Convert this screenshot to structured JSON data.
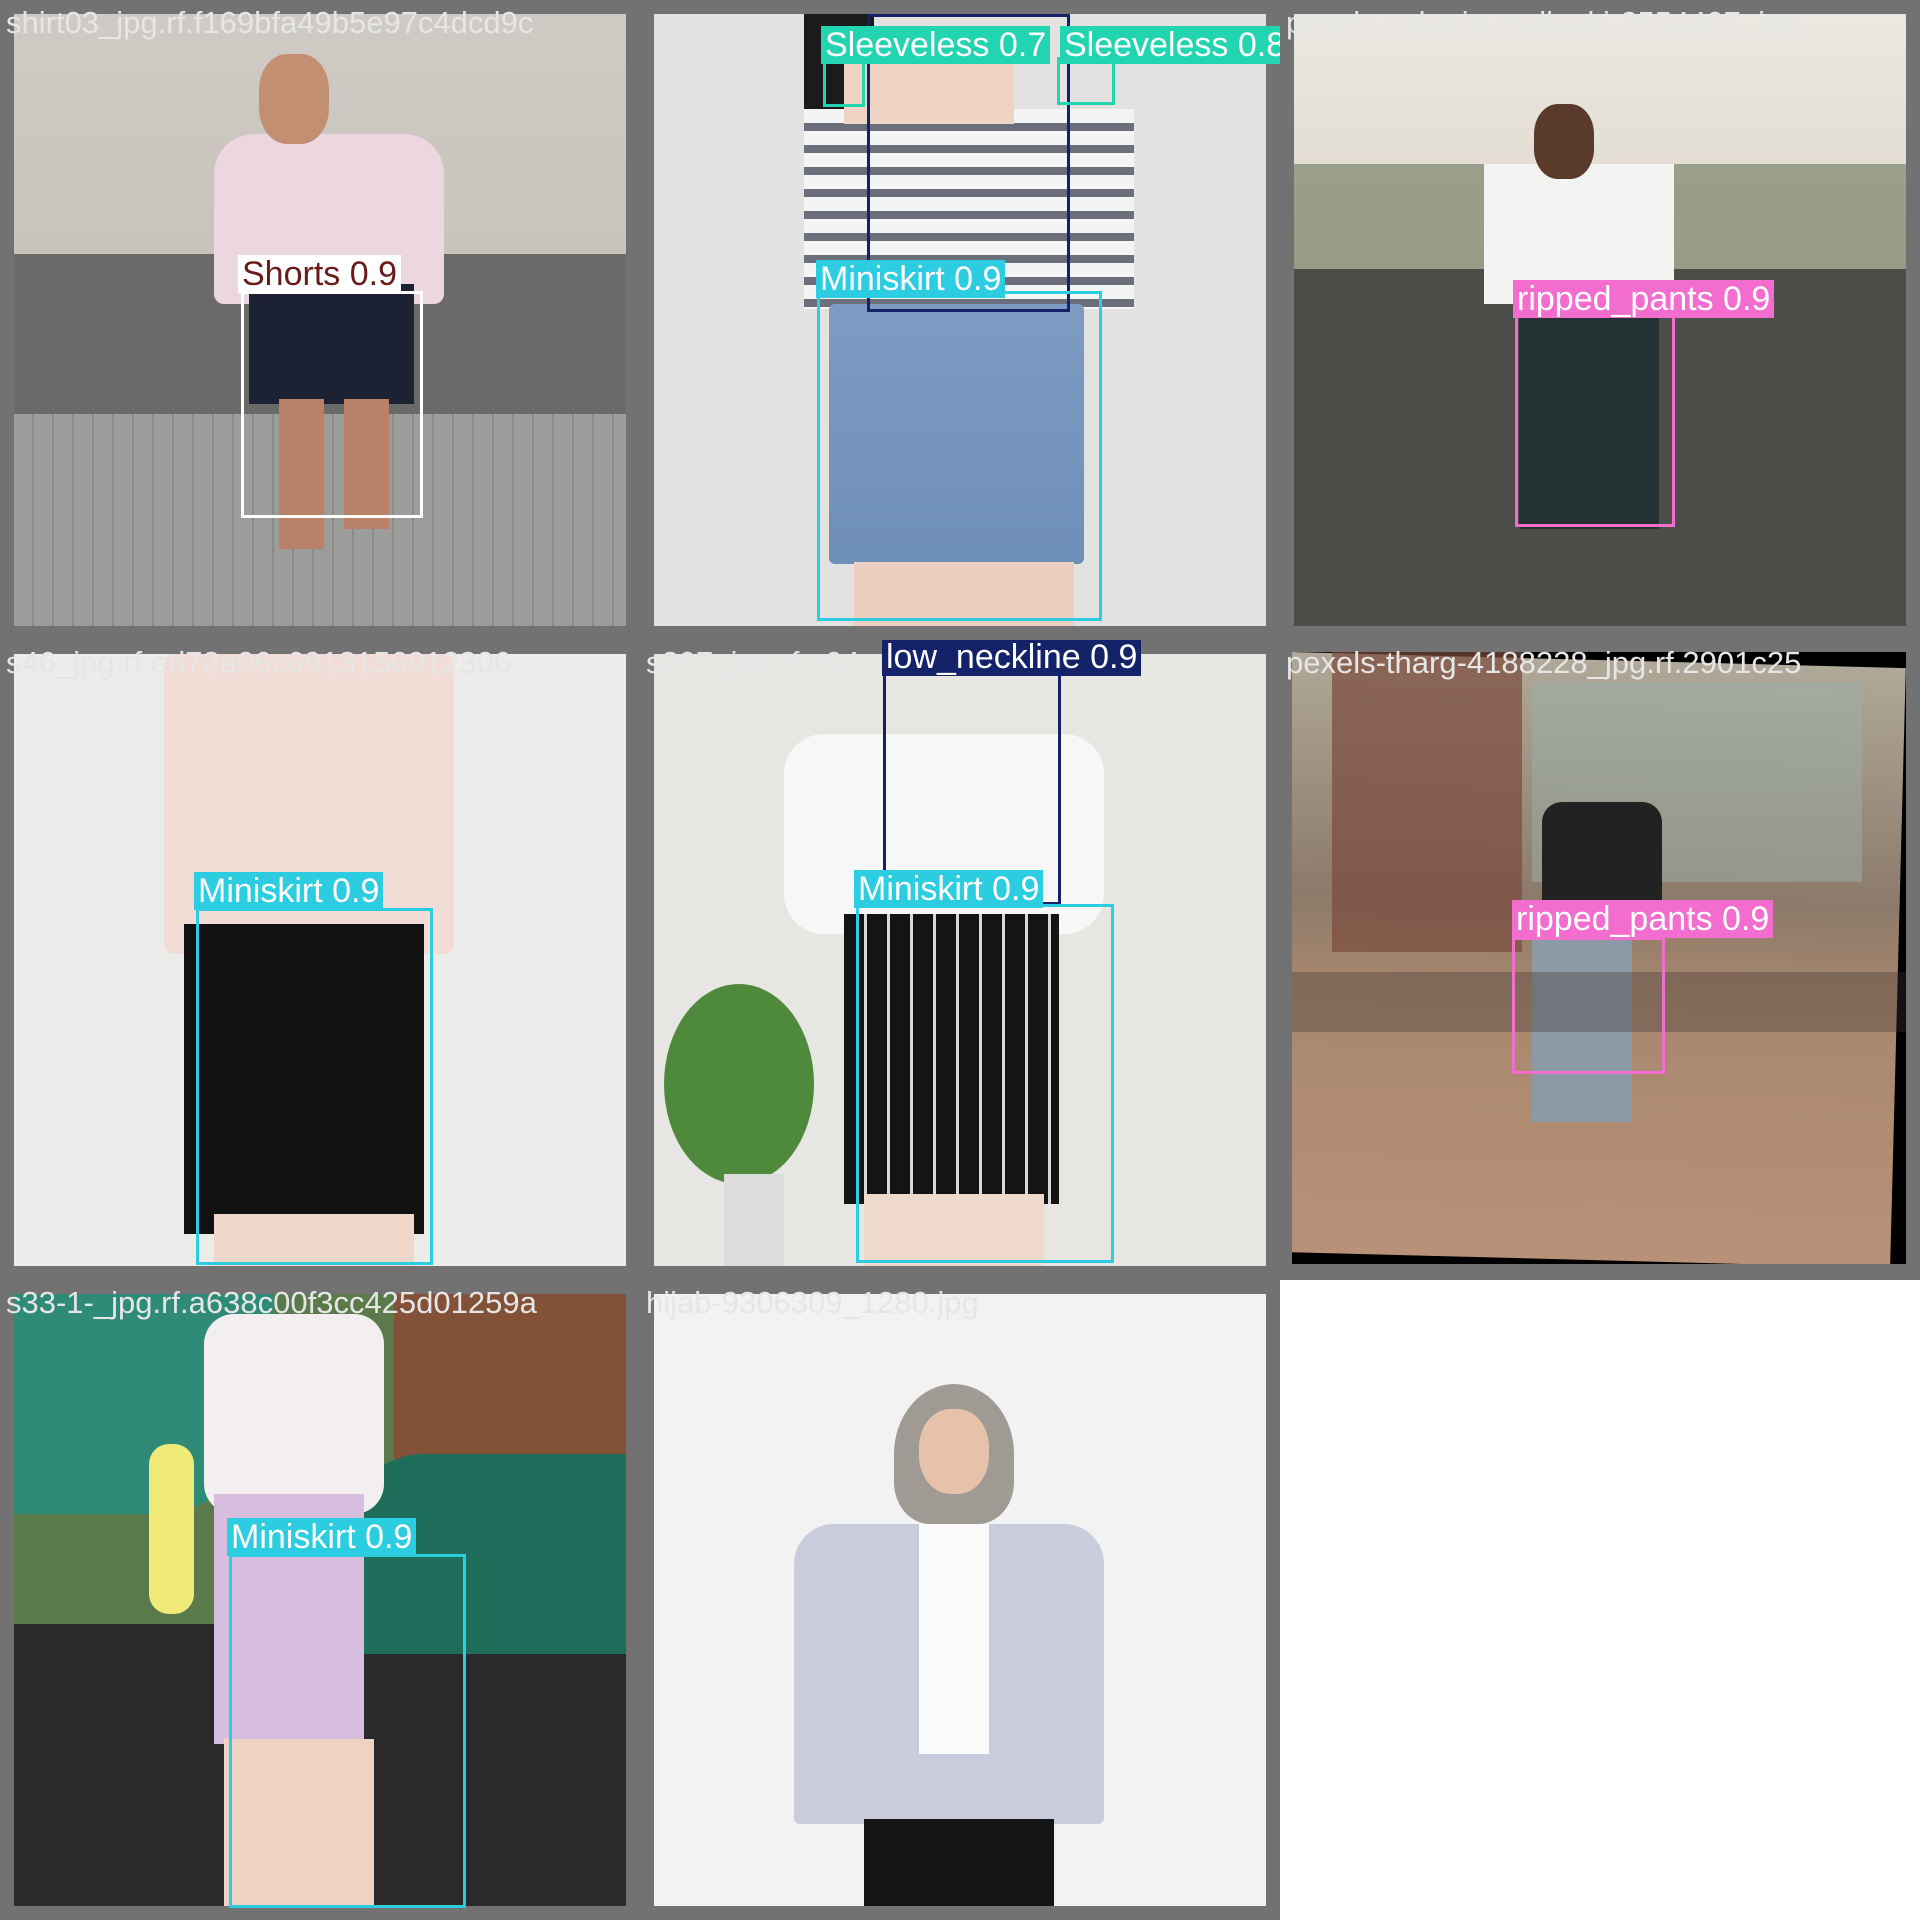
{
  "colors": {
    "Shorts": {
      "box": "#ffffff",
      "label_bg": "#ffffff",
      "label_fg": "#6b1a1a"
    },
    "Sleeveless": {
      "box": "#23d4b0",
      "label_bg": "#23d4b0",
      "label_fg": "#ffffff"
    },
    "Miniskirt": {
      "box": "#2ccde0",
      "label_bg": "#2ccde0",
      "label_fg": "#ffffff"
    },
    "ripped_pants": {
      "box": "#f26dce",
      "label_bg": "#f26dce",
      "label_fg": "#ffffff"
    },
    "low_neckline": {
      "box": "#132269",
      "label_bg": "#132269",
      "label_fg": "#ffffff"
    }
  },
  "tiles": [
    {
      "filename": "shirt03_jpg.rf.f169bfa49b5e97c4dcd9c",
      "detections": [
        {
          "label": "Shorts 0.9"
        }
      ]
    },
    {
      "filename": "",
      "detections": [
        {
          "label": "Sleeveless 0.7"
        },
        {
          "label": "Sleeveless 0.8"
        },
        {
          "label": "Miniskirt 0.9"
        },
        {
          "label": ""
        }
      ]
    },
    {
      "filename": "pexels-zakaria-mellouki-2554407_jpg.",
      "detections": [
        {
          "label": "ripped_pants 0.9"
        }
      ]
    },
    {
      "filename": "s46_jpg.rf.ed72a06c6913156912306",
      "detections": [
        {
          "label": "Miniskirt 0.9"
        }
      ]
    },
    {
      "filename": "s207_jpg.rf.e04",
      "detections": [
        {
          "label": "low_neckline 0.9"
        },
        {
          "label": "Miniskirt 0.9"
        }
      ]
    },
    {
      "filename": "pexels-tharg-4188228_jpg.rf.2901c25",
      "detections": [
        {
          "label": "ripped_pants 0.9"
        }
      ]
    },
    {
      "filename": "s33-1-_jpg.rf.a638c00f3cc425d01259a",
      "detections": [
        {
          "label": "Miniskirt 0.9"
        }
      ]
    },
    {
      "filename": "hijab-9306309_1280.jpg",
      "detections": []
    }
  ]
}
